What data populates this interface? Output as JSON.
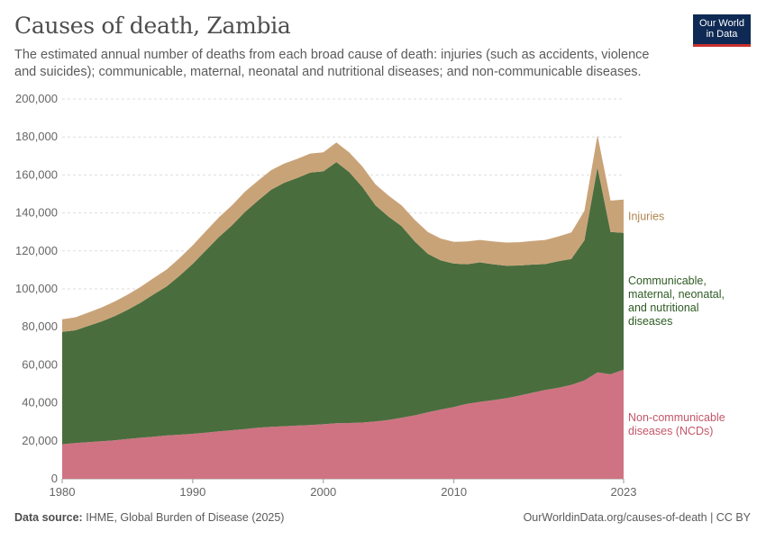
{
  "title": "Causes of death, Zambia",
  "subtitle": "The estimated annual number of deaths from each broad cause of death: injuries (such as accidents, violence and suicides); communicable, maternal, neonatal and nutritional diseases; and non-communicable diseases.",
  "logo": {
    "line1": "Our World",
    "line2": "in Data"
  },
  "footer": {
    "source_label": "Data source:",
    "source_text": "IHME, Global Burden of Disease (2025)",
    "url": "OurWorldinData.org/causes-of-death | CC BY"
  },
  "chart_data": {
    "type": "area",
    "stacked": true,
    "xlim": [
      1980,
      2023
    ],
    "ylim": [
      0,
      200000
    ],
    "x_ticks": [
      "1980",
      "1990",
      "2000",
      "2010",
      "2023"
    ],
    "y_ticks": [
      "0",
      "20,000",
      "40,000",
      "60,000",
      "80,000",
      "100,000",
      "120,000",
      "140,000",
      "160,000",
      "180,000",
      "200,000"
    ],
    "x": [
      1980,
      1981,
      1982,
      1983,
      1984,
      1985,
      1986,
      1987,
      1988,
      1989,
      1990,
      1991,
      1992,
      1993,
      1994,
      1995,
      1996,
      1997,
      1998,
      1999,
      2000,
      2001,
      2002,
      2003,
      2004,
      2005,
      2006,
      2007,
      2008,
      2009,
      2010,
      2011,
      2012,
      2013,
      2014,
      2015,
      2016,
      2017,
      2018,
      2019,
      2020,
      2021,
      2022,
      2023
    ],
    "series": [
      {
        "name": "Non-communicable diseases (NCDs)",
        "label_lines": [
          "Non-communicable",
          "diseases (NCDs)"
        ],
        "color": "#cf7382",
        "label_color": "#c35669",
        "values": [
          18200,
          18800,
          19300,
          19800,
          20300,
          21000,
          21600,
          22200,
          22800,
          23200,
          23700,
          24300,
          25000,
          25600,
          26200,
          26900,
          27400,
          27700,
          28000,
          28300,
          28700,
          29300,
          29400,
          29600,
          30200,
          31000,
          32200,
          33400,
          35000,
          36500,
          37800,
          39500,
          40500,
          41400,
          42400,
          43800,
          45300,
          46800,
          47900,
          49500,
          51800,
          56000,
          55000,
          57500
        ]
      },
      {
        "name": "Communicable, maternal, neonatal, and nutritional diseases",
        "label_lines": [
          "Communicable,",
          "maternal, neonatal,",
          "and nutritional",
          "diseases"
        ],
        "color": "#4a6d3e",
        "label_color": "#2e5b23",
        "values": [
          59200,
          59400,
          61200,
          63000,
          65300,
          67900,
          71100,
          74900,
          78500,
          83800,
          89500,
          96000,
          102300,
          107800,
          114300,
          119600,
          124800,
          128200,
          130400,
          133000,
          133200,
          137500,
          132000,
          124000,
          113800,
          107000,
          100800,
          91600,
          83500,
          78500,
          75500,
          73500,
          73500,
          71600,
          69800,
          68500,
          67500,
          66300,
          66700,
          66300,
          73800,
          108000,
          75000,
          72000
        ]
      },
      {
        "name": "Injuries",
        "label_lines": [
          "Injuries"
        ],
        "color": "#c9a378",
        "label_color": "#b1864f",
        "values": [
          6600,
          6800,
          7100,
          7400,
          7700,
          8000,
          8300,
          8600,
          8900,
          9300,
          9800,
          10100,
          10400,
          10600,
          10700,
          10500,
          10300,
          10100,
          10100,
          10000,
          10000,
          10300,
          10400,
          10800,
          11000,
          11100,
          11000,
          11400,
          11500,
          11500,
          11500,
          12000,
          11800,
          12000,
          12200,
          12300,
          12400,
          12700,
          13000,
          13900,
          15500,
          17000,
          16500,
          17500
        ]
      }
    ]
  }
}
